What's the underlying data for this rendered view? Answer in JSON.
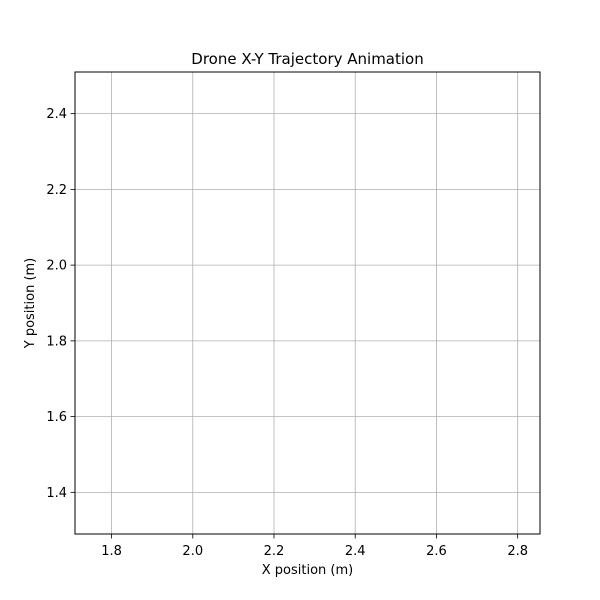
{
  "chart_data": {
    "type": "line",
    "title": "Drone X-Y Trajectory Animation",
    "xlabel": "X position (m)",
    "ylabel": "Y position (m)",
    "xlim": [
      1.71,
      2.855
    ],
    "ylim": [
      1.29,
      2.51
    ],
    "xticks": [
      1.8,
      2.0,
      2.2,
      2.4,
      2.6,
      2.8
    ],
    "xtick_labels": [
      "1.8",
      "2.0",
      "2.2",
      "2.4",
      "2.6",
      "2.8"
    ],
    "yticks": [
      1.4,
      1.6,
      1.8,
      2.0,
      2.2,
      2.4
    ],
    "ytick_labels": [
      "1.4",
      "1.6",
      "1.8",
      "2.0",
      "2.2",
      "2.4"
    ],
    "grid": true,
    "series": [
      {
        "x": [],
        "y": []
      }
    ],
    "colors": {
      "grid": "#b0b0b0",
      "axes": "#000000",
      "background": "#ffffff"
    }
  }
}
